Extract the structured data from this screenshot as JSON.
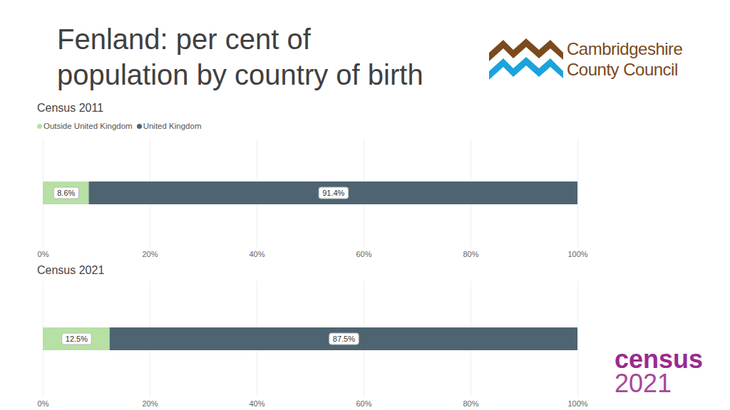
{
  "title": "Fenland: per cent of\npopulation by country of birth",
  "logo_text": [
    "Cambridgeshire",
    "County Council"
  ],
  "census_logo": [
    "census",
    "2021"
  ],
  "chart_data": [
    {
      "type": "bar",
      "orientation": "horizontal",
      "stacked": true,
      "title": "Census 2011",
      "categories": [
        null
      ],
      "series": [
        {
          "name": "Outside United Kingdom",
          "color": "#b7e0a5",
          "values": [
            8.6
          ],
          "value_labels": [
            "8.6%"
          ]
        },
        {
          "name": "United Kingdom",
          "color": "#4e6470",
          "values": [
            91.4
          ],
          "value_labels": [
            "91.4%"
          ]
        }
      ],
      "xlim": [
        0,
        100
      ],
      "xticks": [
        {
          "value": 0,
          "label": "0%"
        },
        {
          "value": 20,
          "label": "20%"
        },
        {
          "value": 40,
          "label": "40%"
        },
        {
          "value": 60,
          "label": "60%"
        },
        {
          "value": 80,
          "label": "80%"
        },
        {
          "value": 100,
          "label": "100%"
        }
      ],
      "grid": true,
      "data_labels": true,
      "legend": "top-left",
      "tick_labels": "x"
    },
    {
      "type": "bar",
      "orientation": "horizontal",
      "stacked": true,
      "title": "Census 2021",
      "categories": [
        null
      ],
      "series": [
        {
          "name": "Outside United Kingdom",
          "color": "#b7e0a5",
          "values": [
            12.5
          ],
          "value_labels": [
            "12.5%"
          ]
        },
        {
          "name": "United Kingdom",
          "color": "#4e6470",
          "values": [
            87.5
          ],
          "value_labels": [
            "87.5%"
          ]
        }
      ],
      "xlim": [
        0,
        100
      ],
      "xticks": [
        {
          "value": 0,
          "label": "0%"
        },
        {
          "value": 20,
          "label": "20%"
        },
        {
          "value": 40,
          "label": "40%"
        },
        {
          "value": 60,
          "label": "60%"
        },
        {
          "value": 80,
          "label": "80%"
        },
        {
          "value": 100,
          "label": "100%"
        }
      ],
      "grid": true,
      "data_labels": true,
      "tick_labels": "x"
    }
  ]
}
